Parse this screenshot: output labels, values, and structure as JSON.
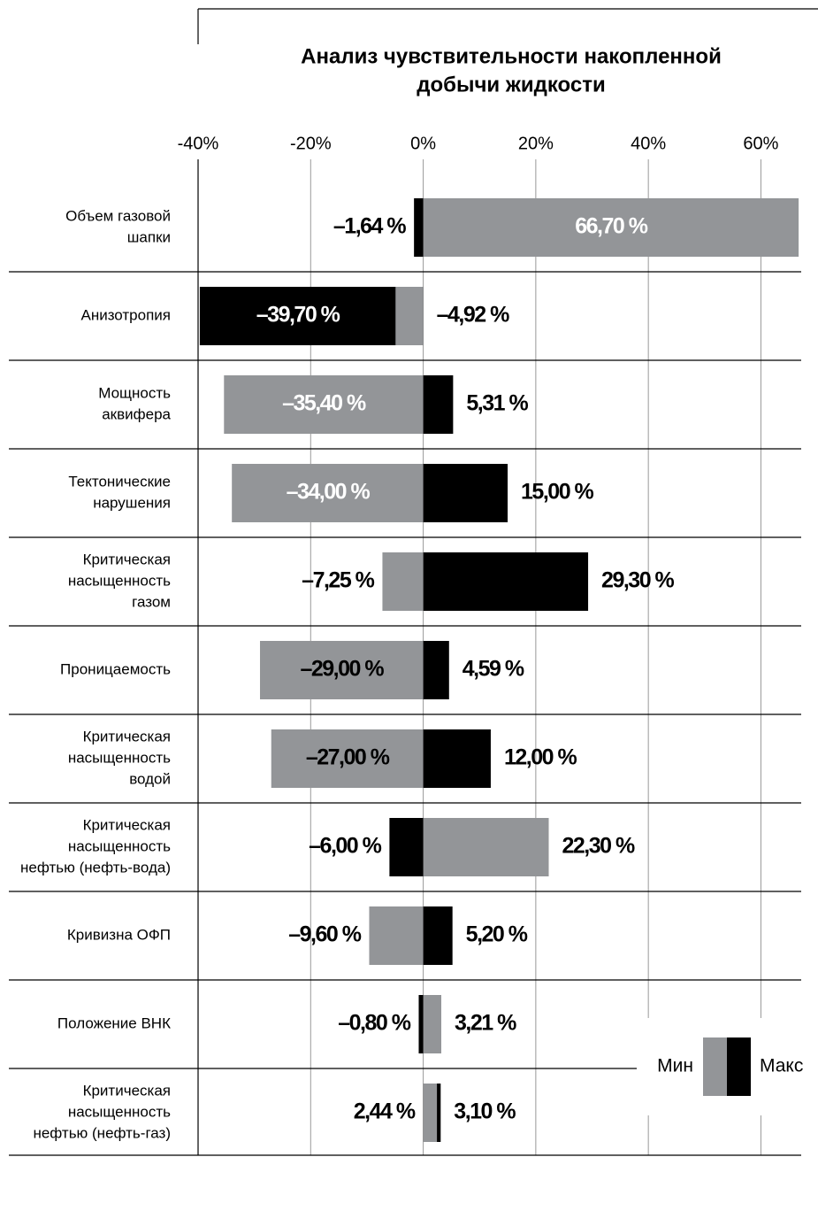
{
  "chart_data": {
    "type": "tornado",
    "title": [
      "Анализ чувствительности накопленной",
      "добычи жидкости"
    ],
    "categories": [
      [
        "Объем газовой",
        "шапки"
      ],
      [
        "Анизотропия"
      ],
      [
        "Мощность",
        "аквифера"
      ],
      [
        "Тектонические",
        "нарушения"
      ],
      [
        "Критическая",
        "насыщенность",
        "газом"
      ],
      [
        "Проницаемость"
      ],
      [
        "Критическая",
        "насыщенность",
        "водой"
      ],
      [
        "Критическая",
        "насыщенность",
        "нефтью (нефть-вода)"
      ],
      [
        "Кривизна ОФП"
      ],
      [
        "Положение ВНК"
      ],
      [
        "Критическая",
        "насыщенность",
        "нефтью (нефть-газ)"
      ]
    ],
    "series": [
      {
        "name": "Мин",
        "color": "#939598",
        "values": [
          66.7,
          -4.92,
          -35.4,
          -34.0,
          -7.25,
          -29.0,
          -27.0,
          22.3,
          -9.6,
          3.21,
          2.44
        ],
        "value_labels": [
          "66,70 %",
          "–4,92 %",
          "–35,40 %",
          "–34,00 %",
          "–7,25 %",
          "–29,00 %",
          "–27,00 %",
          "22,30 %",
          "–9,60 %",
          "3,21 %",
          "2,44 %"
        ]
      },
      {
        "name": "Макс",
        "color": "#000000",
        "values": [
          -1.64,
          -39.7,
          5.31,
          15.0,
          29.3,
          4.59,
          12.0,
          -6.0,
          5.2,
          -0.8,
          3.1
        ],
        "value_labels": [
          "–1,64 %",
          "–39,70 %",
          "5,31 %",
          "15,00 %",
          "29,30 %",
          "4,59 %",
          "12,00 %",
          "–6,00 %",
          "5,20 %",
          "–0,80 %",
          "3,10 %"
        ]
      }
    ],
    "xlim": [
      -40,
      67
    ],
    "xticks": [
      {
        "value": -40,
        "label": "-40%"
      },
      {
        "value": -20,
        "label": "-20%"
      },
      {
        "value": 0,
        "label": "0%"
      },
      {
        "value": 20,
        "label": "20%"
      },
      {
        "value": 40,
        "label": "40%"
      },
      {
        "value": 60,
        "label": "60%"
      }
    ],
    "grid": true
  }
}
